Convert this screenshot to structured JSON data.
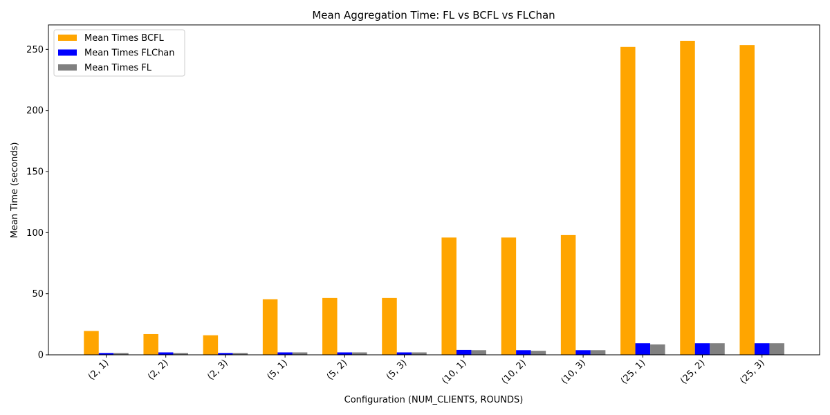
{
  "chart_data": {
    "type": "bar",
    "title": "Mean Aggregation Time: FL vs BCFL vs FLChan",
    "xlabel": "Configuration (NUM_CLIENTS, ROUNDS)",
    "ylabel": "Mean Time (seconds)",
    "categories": [
      "(2, 1)",
      "(2, 2)",
      "(2, 3)",
      "(5, 1)",
      "(5, 2)",
      "(5, 3)",
      "(10, 1)",
      "(10, 2)",
      "(10, 3)",
      "(25, 1)",
      "(25, 2)",
      "(25, 3)"
    ],
    "series": [
      {
        "name": "Mean Times BCFL",
        "color": "#ffa500",
        "values": [
          19.5,
          17.0,
          16.0,
          45.5,
          46.5,
          46.5,
          96.0,
          96.0,
          98.0,
          252.0,
          257.0,
          253.5
        ]
      },
      {
        "name": "Mean Times FLChan",
        "color": "#0000ff",
        "values": [
          1.5,
          2.0,
          1.5,
          2.0,
          2.0,
          2.0,
          4.0,
          3.8,
          3.8,
          9.5,
          9.5,
          9.5
        ]
      },
      {
        "name": "Mean Times FL",
        "color": "#808080",
        "values": [
          1.5,
          1.5,
          1.5,
          2.0,
          2.0,
          2.0,
          3.8,
          3.3,
          3.8,
          8.5,
          9.5,
          9.5
        ]
      }
    ],
    "ylim": [
      0,
      270
    ],
    "yticks": [
      0,
      50,
      100,
      150,
      200,
      250
    ],
    "grid": false,
    "legend_position": "upper-left"
  }
}
